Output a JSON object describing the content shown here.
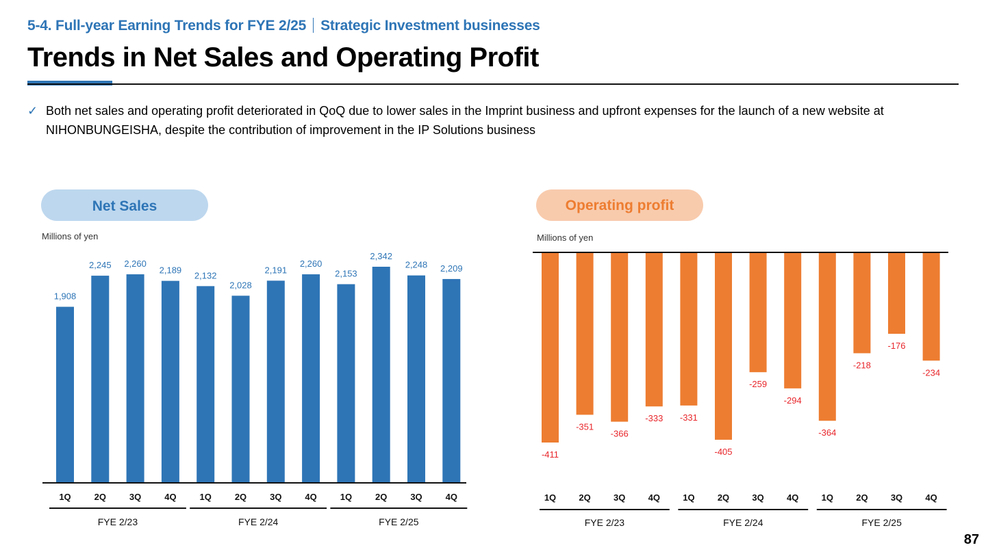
{
  "header": {
    "section_number_title": "5-4. Full-year Earning Trends for FYE 2/25",
    "section_subtitle": "Strategic Investment businesses",
    "title": "Trends in Net Sales and Operating Profit"
  },
  "bullet": {
    "icon": "check-icon",
    "text": "Both net sales and operating profit deteriorated in QoQ due to lower sales in the Imprint business and upfront expenses for the launch of a new website at NIHONBUNGEISHA, despite the contribution of improvement in the IP Solutions business"
  },
  "colors": {
    "accent_blue": "#2e75b6",
    "pill_blue": "#bdd7ee",
    "accent_orange": "#ed7d31",
    "pill_orange": "#f8cbad",
    "negative_label": "#e8262b"
  },
  "page_number": "87",
  "chart_data": [
    {
      "type": "bar",
      "title": "Net Sales",
      "ylabel": "Millions of yen",
      "xlabel": "",
      "categories": [
        "1Q",
        "2Q",
        "3Q",
        "4Q",
        "1Q",
        "2Q",
        "3Q",
        "4Q",
        "1Q",
        "2Q",
        "3Q",
        "4Q"
      ],
      "groups": [
        {
          "label": "FYE 2/23",
          "count": 4
        },
        {
          "label": "FYE 2/24",
          "count": 4
        },
        {
          "label": "FYE 2/25",
          "count": 4
        }
      ],
      "values": [
        1908,
        2245,
        2260,
        2189,
        2132,
        2028,
        2191,
        2260,
        2153,
        2342,
        2248,
        2209
      ],
      "value_labels": [
        "1,908",
        "2,245",
        "2,260",
        "2,189",
        "2,132",
        "2,028",
        "2,191",
        "2,260",
        "2,153",
        "2,342",
        "2,248",
        "2,209"
      ],
      "ylim": [
        0,
        2600
      ],
      "grid": false,
      "legend": "none"
    },
    {
      "type": "bar",
      "title": "Operating profit",
      "ylabel": "Millions of yen",
      "xlabel": "",
      "categories": [
        "1Q",
        "2Q",
        "3Q",
        "4Q",
        "1Q",
        "2Q",
        "3Q",
        "4Q",
        "1Q",
        "2Q",
        "3Q",
        "4Q"
      ],
      "groups": [
        {
          "label": "FYE 2/23",
          "count": 4
        },
        {
          "label": "FYE 2/24",
          "count": 4
        },
        {
          "label": "FYE 2/25",
          "count": 4
        }
      ],
      "values": [
        -411,
        -351,
        -366,
        -333,
        -331,
        -405,
        -259,
        -294,
        -364,
        -218,
        -176,
        -234
      ],
      "value_labels": [
        "-411",
        "-351",
        "-366",
        "-333",
        "-331",
        "-405",
        "-259",
        "-294",
        "-364",
        "-218",
        "-176",
        "-234"
      ],
      "ylim": [
        -450,
        0
      ],
      "grid": false,
      "legend": "none"
    }
  ]
}
